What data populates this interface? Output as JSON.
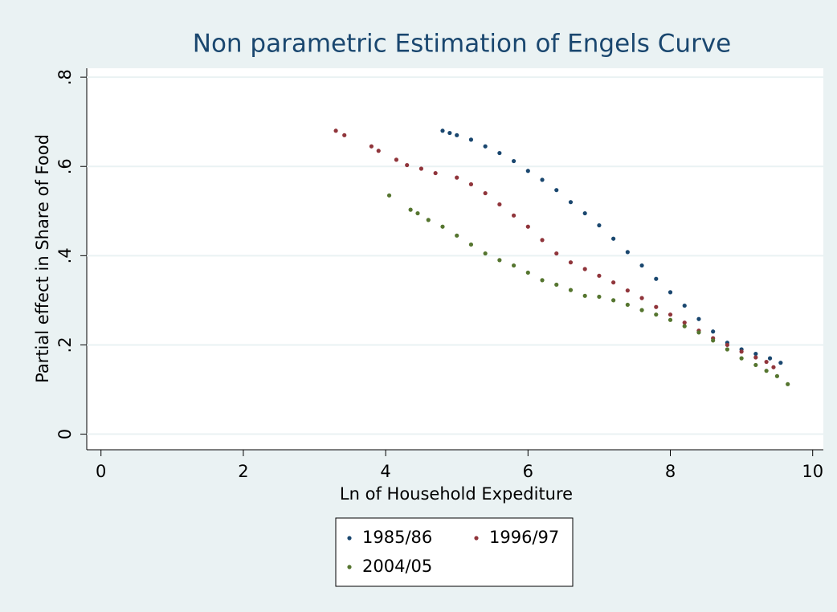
{
  "chart_data": {
    "type": "scatter",
    "title": "Non parametric Estimation of Engels Curve",
    "x_label": "Ln of Household Expediture",
    "y_label": "Partial effect in Share of Food",
    "xlim": [
      -0.2,
      10.15
    ],
    "ylim": [
      -0.035,
      0.82
    ],
    "xticks": [
      0,
      2,
      4,
      6,
      8,
      10
    ],
    "yticks": [
      0,
      {
        "value": 0.2,
        "label": ".2"
      },
      {
        "value": 0.4,
        "label": ".4"
      },
      {
        "value": 0.6,
        "label": ".6"
      },
      {
        "value": 0.8,
        "label": ".8"
      }
    ],
    "grid": true,
    "legend": "bottom",
    "series": [
      {
        "name": "1985/86",
        "color": "#1a476f",
        "x": [
          4.8,
          4.9,
          5.0,
          5.2,
          5.4,
          5.6,
          5.8,
          6.0,
          6.2,
          6.4,
          6.6,
          6.8,
          7.0,
          7.2,
          7.4,
          7.6,
          7.8,
          8.0,
          8.2,
          8.4,
          8.6,
          8.8,
          9.0,
          9.2,
          9.4,
          9.55
        ],
        "values": [
          0.68,
          0.675,
          0.67,
          0.66,
          0.645,
          0.63,
          0.612,
          0.59,
          0.57,
          0.547,
          0.52,
          0.495,
          0.468,
          0.438,
          0.408,
          0.378,
          0.348,
          0.318,
          0.288,
          0.258,
          0.23,
          0.205,
          0.19,
          0.18,
          0.17,
          0.16
        ]
      },
      {
        "name": "1996/97",
        "color": "#90353b",
        "x": [
          3.3,
          3.42,
          3.8,
          3.9,
          4.15,
          4.3,
          4.5,
          4.7,
          5.0,
          5.2,
          5.4,
          5.6,
          5.8,
          6.0,
          6.2,
          6.4,
          6.6,
          6.8,
          7.0,
          7.2,
          7.4,
          7.6,
          7.8,
          8.0,
          8.2,
          8.4,
          8.6,
          8.8,
          9.0,
          9.2,
          9.35,
          9.45
        ],
        "values": [
          0.68,
          0.67,
          0.645,
          0.635,
          0.615,
          0.603,
          0.595,
          0.585,
          0.575,
          0.56,
          0.54,
          0.515,
          0.49,
          0.465,
          0.435,
          0.405,
          0.385,
          0.37,
          0.355,
          0.34,
          0.322,
          0.305,
          0.285,
          0.268,
          0.25,
          0.232,
          0.215,
          0.2,
          0.185,
          0.172,
          0.162,
          0.15
        ]
      },
      {
        "name": "2004/05",
        "color": "#55752f",
        "x": [
          4.05,
          4.35,
          4.45,
          4.6,
          4.8,
          5.0,
          5.2,
          5.4,
          5.6,
          5.8,
          6.0,
          6.2,
          6.4,
          6.6,
          6.8,
          7.0,
          7.2,
          7.4,
          7.6,
          7.8,
          8.0,
          8.2,
          8.4,
          8.6,
          8.8,
          9.0,
          9.2,
          9.35,
          9.5,
          9.65
        ],
        "values": [
          0.535,
          0.503,
          0.495,
          0.48,
          0.465,
          0.445,
          0.425,
          0.405,
          0.39,
          0.378,
          0.362,
          0.345,
          0.335,
          0.323,
          0.31,
          0.308,
          0.3,
          0.29,
          0.278,
          0.268,
          0.256,
          0.242,
          0.228,
          0.21,
          0.19,
          0.17,
          0.155,
          0.142,
          0.13,
          0.112
        ]
      }
    ]
  }
}
